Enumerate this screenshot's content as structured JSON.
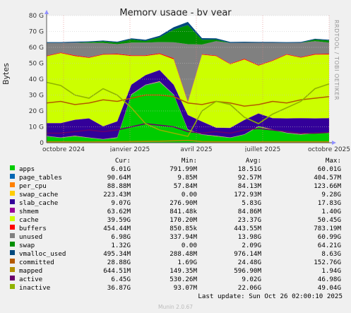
{
  "chart_data": {
    "type": "area",
    "title": "Memory usage - by year",
    "ylabel": "Bytes",
    "ylim": [
      0,
      80
    ],
    "y_ticks": [
      "0",
      "10 G",
      "20 G",
      "30 G",
      "40 G",
      "50 G",
      "60 G",
      "70 G",
      "80 G"
    ],
    "x_ticks": [
      "octobre 2024",
      "janvier 2025",
      "avril 2025",
      "juillet 2025",
      "octobre 2025"
    ],
    "x_tick_pos": [
      0.06,
      0.295,
      0.53,
      0.765,
      1.0
    ],
    "grid": true,
    "x": [
      0,
      0.05,
      0.1,
      0.15,
      0.2,
      0.25,
      0.3,
      0.35,
      0.4,
      0.45,
      0.5,
      0.55,
      0.6,
      0.65,
      0.7,
      0.75,
      0.8,
      0.85,
      0.9,
      0.95,
      1.0
    ],
    "series": [
      {
        "name": "apps",
        "color": "#00cc00",
        "values": [
          4,
          3,
          4,
          3,
          2,
          3,
          30,
          36,
          38,
          30,
          8,
          5,
          4,
          3,
          5,
          10,
          8,
          6,
          5,
          6,
          6
        ]
      },
      {
        "name": "page_tables",
        "color": "#0066b3",
        "values": [
          0.1,
          0.1,
          0.1,
          0.1,
          0.1,
          0.1,
          0.2,
          0.3,
          0.3,
          0.2,
          0.1,
          0.1,
          0.1,
          0.1,
          0.1,
          0.1,
          0.1,
          0.1,
          0.1,
          0.1,
          0.1
        ]
      },
      {
        "name": "per_cpu",
        "color": "#ff8000",
        "values": [
          0.08,
          0.08,
          0.08,
          0.08,
          0.08,
          0.08,
          0.08,
          0.08,
          0.09,
          0.09,
          0.08,
          0.08,
          0.08,
          0.08,
          0.08,
          0.08,
          0.08,
          0.08,
          0.08,
          0.09,
          0.09
        ]
      },
      {
        "name": "swap_cache",
        "color": "#ffcc00",
        "values": [
          0.1,
          0.1,
          0.2,
          0.1,
          0.1,
          0.2,
          0.2,
          0.1,
          0.3,
          0.1,
          0.2,
          0.1,
          0.2,
          0.1,
          0.1,
          0.2,
          0.2,
          0.1,
          0.2,
          0.1,
          0.2
        ]
      },
      {
        "name": "slab_cache",
        "color": "#330099",
        "values": [
          8,
          9,
          10,
          12,
          8,
          10,
          6,
          6,
          7,
          6,
          9,
          8,
          5,
          6,
          9,
          8,
          7,
          9,
          10,
          9,
          9
        ]
      },
      {
        "name": "shmem",
        "color": "#990099",
        "values": [
          0.1,
          0.1,
          0.1,
          0.1,
          0.1,
          0.1,
          0.1,
          0.1,
          0.1,
          0.1,
          0.1,
          0.1,
          0.1,
          0.1,
          0.1,
          0.1,
          0.1,
          0.1,
          0.1,
          0.1,
          0.1
        ]
      },
      {
        "name": "cache",
        "color": "#ccff00",
        "values": [
          42,
          44,
          40,
          38,
          45,
          42,
          18,
          12,
          10,
          16,
          8,
          42,
          45,
          40,
          38,
          30,
          36,
          40,
          38,
          40,
          40
        ]
      },
      {
        "name": "buffers",
        "color": "#ff0000",
        "values": [
          0.4,
          0.4,
          0.5,
          0.4,
          0.4,
          0.5,
          0.4,
          0.4,
          0.5,
          0.7,
          0.5,
          0.4,
          0.4,
          0.4,
          0.5,
          0.4,
          0.4,
          0.4,
          0.4,
          0.5,
          0.5
        ]
      },
      {
        "name": "unused",
        "color": "#808080",
        "values": [
          8,
          6,
          8,
          9,
          7,
          6,
          8,
          8,
          7,
          10,
          36,
          6,
          9,
          13,
          10,
          14,
          11,
          7,
          9,
          8,
          7
        ]
      },
      {
        "name": "swap",
        "color": "#008f00",
        "values": [
          0,
          0,
          0,
          0.5,
          1,
          1,
          2,
          1,
          3,
          8,
          12,
          3,
          1,
          0,
          0,
          0,
          0,
          0,
          0,
          1,
          1.3
        ]
      },
      {
        "name": "vmalloc_used",
        "color": "#00487d",
        "values": [
          0.5,
          0.5,
          0.6,
          0.5,
          0.5,
          0.6,
          0.7,
          0.8,
          1,
          1.5,
          2,
          1,
          0.8,
          0.6,
          0.6,
          0.5,
          0.5,
          0.5,
          0.5,
          0.5,
          0.5
        ]
      },
      {
        "name": "committed",
        "color": "#b35a00",
        "values": [
          25,
          26,
          24,
          25,
          27,
          26,
          28,
          30,
          30,
          29,
          25,
          24,
          26,
          25,
          23,
          24,
          26,
          25,
          27,
          28,
          29
        ]
      },
      {
        "name": "mapped",
        "color": "#b38f00",
        "values": [
          0.6,
          0.6,
          0.6,
          0.5,
          0.6,
          0.6,
          0.7,
          0.8,
          0.9,
          1.2,
          1.5,
          0.7,
          0.6,
          0.6,
          0.6,
          0.6,
          0.6,
          0.6,
          0.6,
          0.6,
          0.6
        ]
      },
      {
        "name": "active",
        "color": "#6b006b",
        "values": [
          6,
          6,
          7,
          8,
          7,
          8,
          10,
          12,
          11,
          10,
          7,
          6,
          7,
          6,
          8,
          9,
          8,
          7,
          6,
          6,
          6.5
        ]
      },
      {
        "name": "inactive",
        "color": "#8fb300",
        "values": [
          38,
          36,
          30,
          28,
          34,
          30,
          22,
          12,
          8,
          6,
          4,
          20,
          26,
          24,
          16,
          12,
          18,
          22,
          26,
          34,
          37
        ]
      }
    ]
  },
  "watermark": "RRDTOOL / TOBI OETIKER",
  "legend": {
    "headers": {
      "cur": "Cur:",
      "min": "Min:",
      "avg": "Avg:",
      "max": "Max:"
    },
    "rows": [
      {
        "name": "apps",
        "color": "#00cc00",
        "cur": "6.01G",
        "min": "791.99M",
        "avg": "18.51G",
        "max": "60.01G"
      },
      {
        "name": "page_tables",
        "color": "#0066b3",
        "cur": "90.64M",
        "min": "9.85M",
        "avg": "92.57M",
        "max": "404.57M"
      },
      {
        "name": "per_cpu",
        "color": "#ff8000",
        "cur": "88.88M",
        "min": "57.84M",
        "avg": "84.13M",
        "max": "123.66M"
      },
      {
        "name": "swap_cache",
        "color": "#ffcc00",
        "cur": "223.43M",
        "min": "0.00",
        "avg": "172.93M",
        "max": "9.28G"
      },
      {
        "name": "slab_cache",
        "color": "#330099",
        "cur": "9.07G",
        "min": "276.90M",
        "avg": "5.83G",
        "max": "17.83G"
      },
      {
        "name": "shmem",
        "color": "#990099",
        "cur": "63.62M",
        "min": "841.48k",
        "avg": "84.86M",
        "max": "1.40G"
      },
      {
        "name": "cache",
        "color": "#ccff00",
        "cur": "39.59G",
        "min": "170.20M",
        "avg": "23.37G",
        "max": "50.45G"
      },
      {
        "name": "buffers",
        "color": "#ff0000",
        "cur": "454.44M",
        "min": "850.85k",
        "avg": "443.55M",
        "max": "783.19M"
      },
      {
        "name": "unused",
        "color": "#808080",
        "cur": "6.98G",
        "min": "337.94M",
        "avg": "13.98G",
        "max": "60.99G"
      },
      {
        "name": "swap",
        "color": "#008f00",
        "cur": "1.32G",
        "min": "0.00",
        "avg": "2.09G",
        "max": "64.21G"
      },
      {
        "name": "vmalloc_used",
        "color": "#00487d",
        "cur": "495.34M",
        "min": "288.48M",
        "avg": "976.14M",
        "max": "8.63G"
      },
      {
        "name": "committed",
        "color": "#b35a00",
        "cur": "28.88G",
        "min": "1.69G",
        "avg": "24.48G",
        "max": "152.76G"
      },
      {
        "name": "mapped",
        "color": "#b38f00",
        "cur": "644.51M",
        "min": "149.35M",
        "avg": "596.90M",
        "max": "1.94G"
      },
      {
        "name": "active",
        "color": "#6b006b",
        "cur": "6.45G",
        "min": "530.26M",
        "avg": "9.02G",
        "max": "46.98G"
      },
      {
        "name": "inactive",
        "color": "#8fb300",
        "cur": "36.87G",
        "min": "93.07M",
        "avg": "22.06G",
        "max": "49.04G"
      }
    ]
  },
  "footer": {
    "last_update": "Last update: Sun Oct 26 02:00:10 2025",
    "version": "Munin 2.0.67"
  }
}
